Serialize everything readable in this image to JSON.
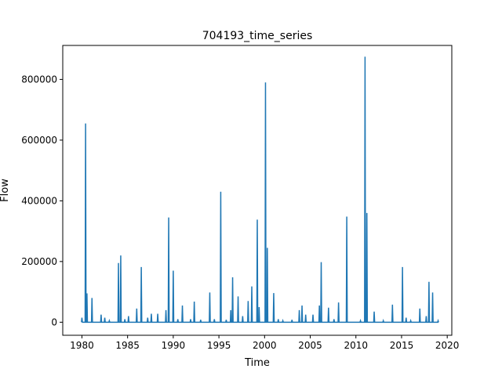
{
  "chart_data": {
    "type": "line",
    "title": "704193_time_series",
    "xlabel": "Time",
    "ylabel": "Flow",
    "xlim": [
      1977.9,
      2020.5
    ],
    "ylim": [
      -43000,
      912000
    ],
    "grid": false,
    "legend": "none",
    "x_ticks": [
      1980,
      1985,
      1990,
      1995,
      2000,
      2005,
      2010,
      2015,
      2020
    ],
    "x_tick_labels": [
      "1980",
      "1985",
      "1990",
      "1995",
      "2000",
      "2005",
      "2010",
      "2015",
      "2020"
    ],
    "y_ticks": [
      0,
      200000,
      400000,
      600000,
      800000
    ],
    "y_tick_labels": [
      "0",
      "200000",
      "400000",
      "600000",
      "800000"
    ],
    "series": [
      {
        "color": "#1f77b4",
        "peaks": [
          [
            1980.0,
            15000
          ],
          [
            1980.4,
            655000
          ],
          [
            1980.55,
            95000
          ],
          [
            1981.1,
            80000
          ],
          [
            1982.1,
            25000
          ],
          [
            1982.5,
            15000
          ],
          [
            1983.0,
            5000
          ],
          [
            1984.0,
            195000
          ],
          [
            1984.25,
            220000
          ],
          [
            1984.7,
            10000
          ],
          [
            1985.1,
            20000
          ],
          [
            1986.0,
            45000
          ],
          [
            1986.5,
            182000
          ],
          [
            1987.2,
            15000
          ],
          [
            1987.6,
            28000
          ],
          [
            1988.3,
            28000
          ],
          [
            1989.2,
            40000
          ],
          [
            1989.5,
            345000
          ],
          [
            1990.0,
            170000
          ],
          [
            1990.5,
            10000
          ],
          [
            1991.0,
            55000
          ],
          [
            1991.9,
            10000
          ],
          [
            1992.3,
            68000
          ],
          [
            1993.0,
            8000
          ],
          [
            1994.0,
            98000
          ],
          [
            1994.5,
            10000
          ],
          [
            1995.2,
            430000
          ],
          [
            1995.8,
            8000
          ],
          [
            1996.3,
            40000
          ],
          [
            1996.5,
            148000
          ],
          [
            1997.1,
            85000
          ],
          [
            1997.6,
            20000
          ],
          [
            1998.2,
            70000
          ],
          [
            1998.6,
            118000
          ],
          [
            1999.2,
            338000
          ],
          [
            1999.4,
            50000
          ],
          [
            2000.1,
            790000
          ],
          [
            2000.3,
            245000
          ],
          [
            2001.0,
            96000
          ],
          [
            2001.5,
            10000
          ],
          [
            2002.0,
            5000
          ],
          [
            2003.0,
            8000
          ],
          [
            2003.8,
            40000
          ],
          [
            2004.1,
            55000
          ],
          [
            2004.5,
            25000
          ],
          [
            2005.3,
            25000
          ],
          [
            2006.0,
            55000
          ],
          [
            2006.2,
            198000
          ],
          [
            2007.0,
            48000
          ],
          [
            2007.6,
            10000
          ],
          [
            2008.1,
            65000
          ],
          [
            2009.0,
            348000
          ],
          [
            2010.5,
            5000
          ],
          [
            2011.0,
            875000
          ],
          [
            2011.2,
            360000
          ],
          [
            2012.0,
            35000
          ],
          [
            2013.0,
            5000
          ],
          [
            2014.0,
            58000
          ],
          [
            2015.1,
            182000
          ],
          [
            2015.5,
            15000
          ],
          [
            2016.0,
            5000
          ],
          [
            2017.0,
            45000
          ],
          [
            2017.7,
            20000
          ],
          [
            2018.0,
            133000
          ],
          [
            2018.4,
            98000
          ],
          [
            2019.0,
            5000
          ]
        ]
      }
    ]
  }
}
